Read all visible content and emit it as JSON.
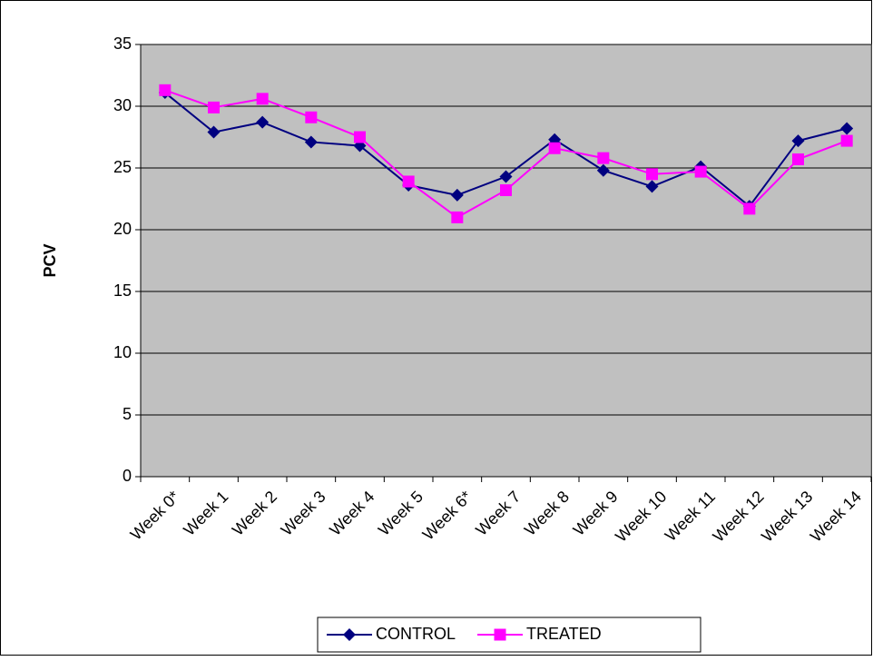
{
  "chart_data": {
    "type": "line",
    "ylabel": "PCV",
    "categories": [
      "Week 0*",
      "Week 1",
      "Week 2",
      "Week 3",
      "Week 4",
      "Week 5",
      "Week 6*",
      "Week 7",
      "Week 8",
      "Week 9",
      "Week 10",
      "Week 11",
      "Week 12",
      "Week 13",
      "Week 14"
    ],
    "series": [
      {
        "name": "CONTROL",
        "color": "#000080",
        "marker": "diamond",
        "values": [
          31.1,
          27.9,
          28.7,
          27.1,
          26.8,
          23.6,
          22.8,
          24.3,
          27.3,
          24.8,
          23.5,
          25.1,
          21.9,
          27.2,
          28.2
        ]
      },
      {
        "name": "TREATED",
        "color": "#ff00ff",
        "marker": "square",
        "values": [
          31.3,
          29.9,
          30.6,
          29.1,
          27.5,
          23.9,
          21.0,
          23.2,
          26.6,
          25.8,
          24.5,
          24.7,
          21.7,
          25.7,
          27.2
        ]
      }
    ],
    "ylim": [
      0,
      35
    ],
    "yticks": [
      0,
      5,
      10,
      15,
      20,
      25,
      30,
      35
    ],
    "grid": true,
    "plot_background": "#c0c0c0",
    "legend": "bottom"
  }
}
